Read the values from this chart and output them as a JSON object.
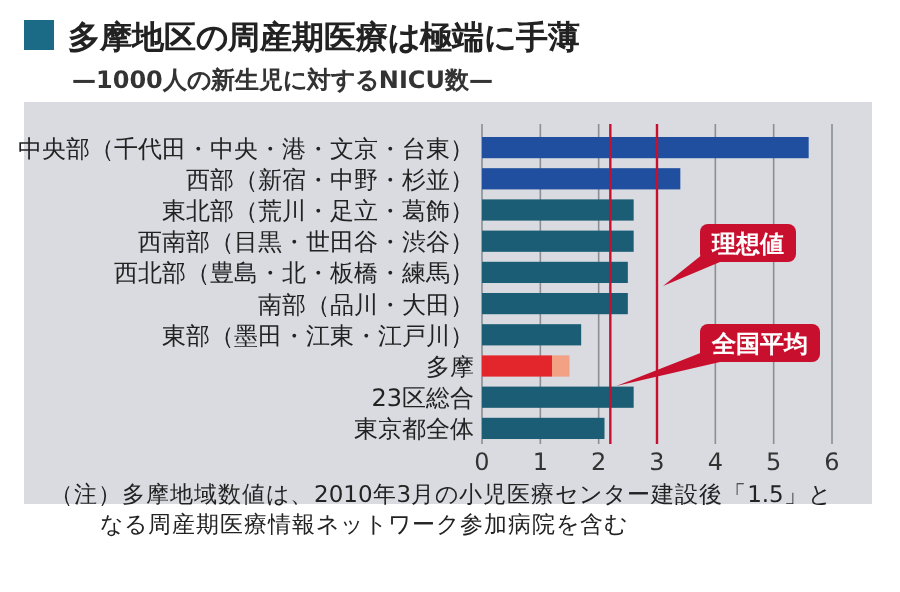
{
  "chart_data": {
    "type": "bar",
    "orientation": "horizontal",
    "stacked": true,
    "title": "多摩地区の周産期医療は極端に手薄",
    "subtitle": "—1000人の新生児に対するNICU数—",
    "categories": [
      "中央部（千代田・中央・港・文京・台東）",
      "西部（新宿・中野・杉並）",
      "東北部（荒川・足立・葛飾）",
      "西南部（目黒・世田谷・渋谷）",
      "西北部（豊島・北・板橋・練馬）",
      "南部（品川・大田）",
      "東部（墨田・江東・江戸川）",
      "多摩",
      "23区総合",
      "東京都全体"
    ],
    "series": [
      {
        "colors": [
          "#1f4f9e",
          "#1f4f9e",
          "#1b5d74",
          "#1b5d74",
          "#1b5d74",
          "#1b5d74",
          "#1b5d74",
          "#e3262b",
          "#1b5d74",
          "#1b5d74"
        ],
        "values": [
          5.6,
          3.4,
          2.6,
          2.6,
          2.5,
          2.5,
          1.7,
          1.2,
          2.6,
          2.1
        ]
      },
      {
        "color": "#f2a184",
        "values": [
          null,
          null,
          null,
          null,
          null,
          null,
          null,
          0.3,
          null,
          null
        ]
      }
    ],
    "xlim": [
      0,
      6
    ],
    "xticks": [
      0,
      1,
      2,
      3,
      4,
      5,
      6
    ],
    "grid": "x",
    "ref_lines": [
      {
        "axis": "x",
        "value": 3,
        "label": "理想値",
        "color": "#c8102e"
      },
      {
        "axis": "x",
        "value": 2.2,
        "label": "全国平均",
        "color": "#c8102e"
      }
    ],
    "annotations": [
      "（注）多摩地域数値は、2010年3月の小児医療センター建設後「1.5」となる周産期医療情報ネットワーク参加病院を含む"
    ]
  }
}
